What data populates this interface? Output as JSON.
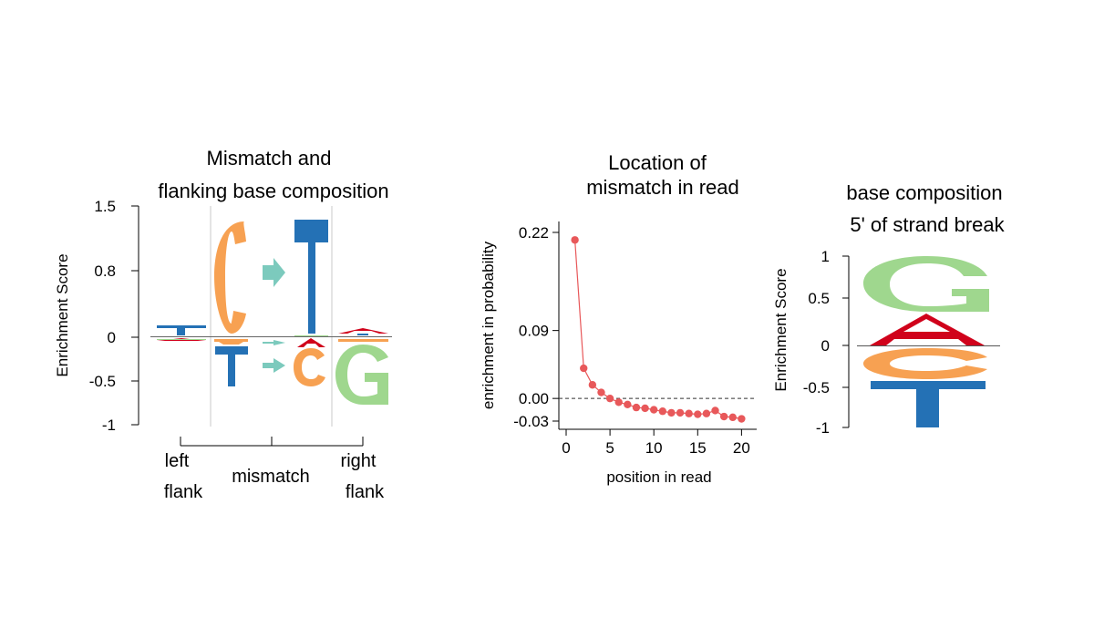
{
  "panels": {
    "left": {
      "title_line1": "Mismatch and",
      "title_line2": "flanking base composition",
      "ylabel": "Enrichment Score",
      "yticks": [
        "1.5",
        "0.8",
        "0",
        "-0.5",
        "-1"
      ],
      "group_labels": {
        "left_line1": "left",
        "left_line2": "flank",
        "mid": "mismatch",
        "right_line1": "right",
        "right_line2": "flank"
      }
    },
    "middle": {
      "title_line1": "Location of",
      "title_line2": "mismatch in read",
      "xlabel": "position in read",
      "ylabel": "enrichment in probability",
      "yticks": [
        "0.22",
        "0.09",
        "0.00",
        "-0.03"
      ],
      "xticks": [
        "0",
        "5",
        "10",
        "15",
        "20"
      ]
    },
    "right": {
      "title_line1": "base composition",
      "title_line2": "5' of  strand break",
      "ylabel": "Enrichment Score",
      "yticks": [
        "1",
        "0.5",
        "0",
        "-0.5",
        "-1"
      ]
    }
  },
  "colors": {
    "A": "#d0021b",
    "C": "#f7a152",
    "G": "#9fd78e",
    "T": "#2471b5",
    "arrow": "#7ccabd",
    "line": "#e8585a"
  },
  "chart_data": [
    {
      "type": "sequence-logo",
      "title": "Mismatch and flanking base composition",
      "ylabel": "Enrichment Score",
      "ylim": [
        -1,
        1.5
      ],
      "groups": [
        "left flank",
        "mismatch",
        "right flank"
      ],
      "positions": [
        {
          "group": "left flank",
          "letters": [
            {
              "base": "T",
              "value": 0.12
            },
            {
              "base": "A",
              "value": -0.04
            },
            {
              "base": "G",
              "value": -0.02
            }
          ]
        },
        {
          "group": "mismatch",
          "transition": "reference",
          "letters": [
            {
              "base": "C",
              "value": 1.3
            },
            {
              "base": "C",
              "value": -0.07
            },
            {
              "base": "T",
              "value": -0.55
            }
          ]
        },
        {
          "group": "mismatch",
          "transition": "read",
          "letters": [
            {
              "base": "T",
              "value": 1.25
            },
            {
              "base": "A",
              "value": -0.12
            },
            {
              "base": "C",
              "value": -0.45
            }
          ]
        },
        {
          "group": "right flank",
          "letters": [
            {
              "base": "A",
              "value": 0.06
            },
            {
              "base": "C",
              "value": -0.04
            },
            {
              "base": "G",
              "value": -0.78
            }
          ]
        }
      ]
    },
    {
      "type": "line",
      "title": "Location of mismatch in read",
      "xlabel": "position in read",
      "ylabel": "enrichment in probability",
      "xlim": [
        0,
        21
      ],
      "ylim": [
        -0.03,
        0.22
      ],
      "x": [
        1,
        2,
        3,
        4,
        5,
        6,
        7,
        8,
        9,
        10,
        11,
        12,
        13,
        14,
        15,
        16,
        17,
        18,
        19,
        20
      ],
      "y": [
        0.21,
        0.04,
        0.018,
        0.008,
        0.0,
        -0.005,
        -0.008,
        -0.012,
        -0.013,
        -0.015,
        -0.017,
        -0.019,
        -0.019,
        -0.02,
        -0.021,
        -0.02,
        -0.016,
        -0.024,
        -0.025,
        -0.027
      ],
      "reference_line": 0.0
    },
    {
      "type": "sequence-logo",
      "title": "base composition 5' of strand break",
      "ylabel": "Enrichment Score",
      "ylim": [
        -1,
        1
      ],
      "positions": [
        {
          "letters": [
            {
              "base": "G",
              "value": 0.7
            },
            {
              "base": "A",
              "value": 0.3
            },
            {
              "base": "C",
              "value": -0.35
            },
            {
              "base": "T",
              "value": -0.6
            }
          ]
        }
      ]
    }
  ]
}
